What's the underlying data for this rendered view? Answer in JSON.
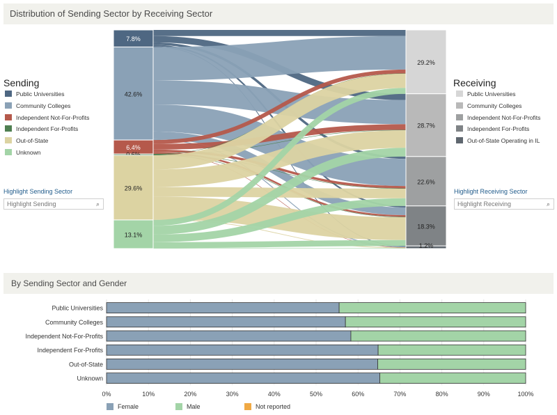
{
  "header": {
    "title": "Distribution of Sending Sector by Receiving Sector"
  },
  "sending": {
    "title": "Sending",
    "items": [
      {
        "label": "Public Universities",
        "color": "#4e6782"
      },
      {
        "label": "Community Colleges",
        "color": "#8aa1b6"
      },
      {
        "label": "Independent Not-For-Profits",
        "color": "#b5594b"
      },
      {
        "label": "Independent For-Profits",
        "color": "#4f7f51"
      },
      {
        "label": "Out-of-State",
        "color": "#dcd3a2"
      },
      {
        "label": "Unknown",
        "color": "#a3d4a7"
      }
    ],
    "highlight_label": "Highlight Sending Sector",
    "highlight_placeholder": "Highlight Sending"
  },
  "receiving": {
    "title": "Receiving",
    "items": [
      {
        "label": "Public Universities",
        "color": "#d6d6d6"
      },
      {
        "label": "Community Colleges",
        "color": "#b9b9b9"
      },
      {
        "label": "Independent Not-For-Profits",
        "color": "#9ea0a1"
      },
      {
        "label": "Independent For-Profits",
        "color": "#7f8386"
      },
      {
        "label": "Out-of-State Operating in IL",
        "color": "#5f676f"
      }
    ],
    "highlight_label": "Highlight Receiving Sector",
    "highlight_placeholder": "Highlight Receiving"
  },
  "chart_data": [
    {
      "type": "sankey",
      "title": "Distribution of Sending Sector by Receiving Sector",
      "sources": [
        {
          "name": "Public Universities",
          "pct": 7.8,
          "label": "7.8%"
        },
        {
          "name": "Community Colleges",
          "pct": 42.6,
          "label": "42.6%"
        },
        {
          "name": "Independent Not-For-Profits",
          "pct": 6.4,
          "label": "6.4%"
        },
        {
          "name": "Independent For-Profits",
          "pct": 0.6,
          "label": "0.6%"
        },
        {
          "name": "Out-of-State",
          "pct": 29.6,
          "label": "29.6%"
        },
        {
          "name": "Unknown",
          "pct": 13.1,
          "label": "13.1%"
        }
      ],
      "targets": [
        {
          "name": "Public Universities",
          "pct": 29.2,
          "label": "29.2%"
        },
        {
          "name": "Community Colleges",
          "pct": 28.7,
          "label": "28.7%"
        },
        {
          "name": "Independent Not-For-Profits",
          "pct": 22.6,
          "label": "22.6%"
        },
        {
          "name": "Independent For-Profits",
          "pct": 18.3,
          "label": "18.3%"
        },
        {
          "name": "Out-of-State Operating in IL",
          "pct": 1.2,
          "label": "1.2%"
        }
      ],
      "flows": [
        {
          "source": "Public Universities",
          "target": "Public Universities",
          "value": 2.8
        },
        {
          "source": "Public Universities",
          "target": "Community Colleges",
          "value": 2.9
        },
        {
          "source": "Public Universities",
          "target": "Independent Not-For-Profits",
          "value": 1.1
        },
        {
          "source": "Public Universities",
          "target": "Independent For-Profits",
          "value": 0.7
        },
        {
          "source": "Public Universities",
          "target": "Out-of-State Operating in IL",
          "value": 0.3
        },
        {
          "source": "Community Colleges",
          "target": "Public Universities",
          "value": 15.3
        },
        {
          "source": "Community Colleges",
          "target": "Community Colleges",
          "value": 11.0
        },
        {
          "source": "Community Colleges",
          "target": "Independent Not-For-Profits",
          "value": 12.4
        },
        {
          "source": "Community Colleges",
          "target": "Independent For-Profits",
          "value": 3.5
        },
        {
          "source": "Community Colleges",
          "target": "Out-of-State Operating in IL",
          "value": 0.4
        },
        {
          "source": "Independent Not-For-Profits",
          "target": "Public Universities",
          "value": 1.8
        },
        {
          "source": "Independent Not-For-Profits",
          "target": "Community Colleges",
          "value": 2.6
        },
        {
          "source": "Independent Not-For-Profits",
          "target": "Independent Not-For-Profits",
          "value": 1.1
        },
        {
          "source": "Independent Not-For-Profits",
          "target": "Independent For-Profits",
          "value": 0.8
        },
        {
          "source": "Independent Not-For-Profits",
          "target": "Out-of-State Operating in IL",
          "value": 0.1
        },
        {
          "source": "Independent For-Profits",
          "target": "Public Universities",
          "value": 0.1
        },
        {
          "source": "Independent For-Profits",
          "target": "Community Colleges",
          "value": 0.2
        },
        {
          "source": "Independent For-Profits",
          "target": "Independent Not-For-Profits",
          "value": 0.1
        },
        {
          "source": "Independent For-Profits",
          "target": "Independent For-Profits",
          "value": 0.2
        },
        {
          "source": "Out-of-State",
          "target": "Public Universities",
          "value": 6.5
        },
        {
          "source": "Out-of-State",
          "target": "Community Colleges",
          "value": 8.0
        },
        {
          "source": "Out-of-State",
          "target": "Independent Not-For-Profits",
          "value": 4.4
        },
        {
          "source": "Out-of-State",
          "target": "Independent For-Profits",
          "value": 10.4
        },
        {
          "source": "Out-of-State",
          "target": "Out-of-State Operating in IL",
          "value": 0.3
        },
        {
          "source": "Unknown",
          "target": "Public Universities",
          "value": 2.7
        },
        {
          "source": "Unknown",
          "target": "Community Colleges",
          "value": 4.0
        },
        {
          "source": "Unknown",
          "target": "Independent Not-For-Profits",
          "value": 3.5
        },
        {
          "source": "Unknown",
          "target": "Independent For-Profits",
          "value": 2.7
        },
        {
          "source": "Unknown",
          "target": "Out-of-State Operating in IL",
          "value": 0.2
        }
      ]
    },
    {
      "type": "bar",
      "stacked": true,
      "orientation": "horizontal",
      "title": "By Sending Sector and Gender",
      "categories": [
        "Public Universities",
        "Community Colleges",
        "Independent Not-For-Profits",
        "Independent For-Profits",
        "Out-of-State",
        "Unknown"
      ],
      "series": [
        {
          "name": "Female",
          "color": "#8aa1b6",
          "values": [
            55.5,
            57.0,
            58.3,
            64.8,
            64.7,
            65.2
          ]
        },
        {
          "name": "Male",
          "color": "#a3d4a7",
          "values": [
            44.5,
            43.0,
            41.7,
            35.2,
            35.3,
            34.8
          ]
        },
        {
          "name": "Not reported",
          "color": "#f0a944",
          "values": [
            0,
            0,
            0,
            0,
            0,
            0
          ]
        }
      ],
      "xlim": [
        0,
        100
      ],
      "xticks": [
        "0%",
        "10%",
        "20%",
        "30%",
        "40%",
        "50%",
        "60%",
        "70%",
        "80%",
        "90%",
        "100%"
      ],
      "legend": "bottom-left"
    }
  ]
}
